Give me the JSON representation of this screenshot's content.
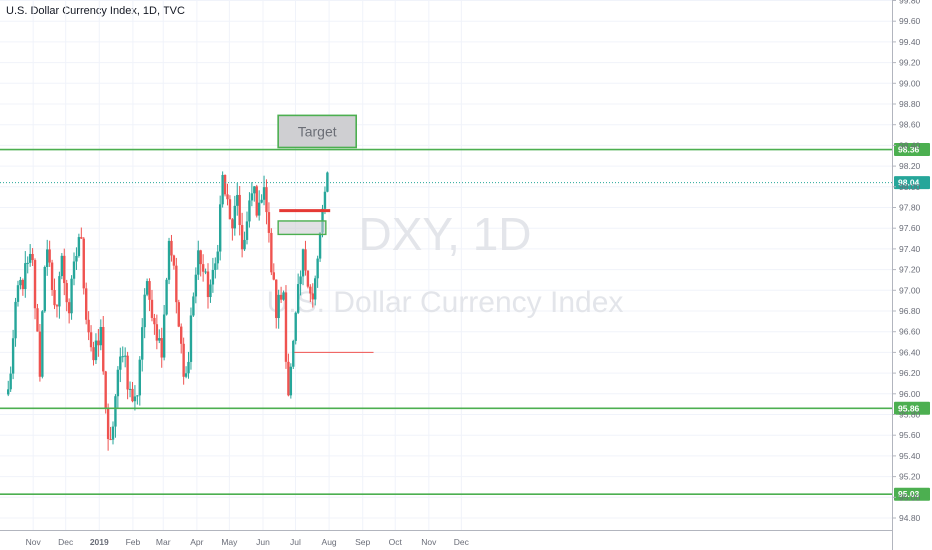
{
  "header": {
    "title": "U.S. Dollar Currency Index, 1D, TVC"
  },
  "watermark": {
    "symbol": "DXY, 1D",
    "name": "U.S. Dollar Currency Index"
  },
  "colors": {
    "up": "#26a69a",
    "down": "#ef5350",
    "level": "#4caf50",
    "resistance": "#e53935",
    "last_price": "#26a69a",
    "grid": "#f0f3fa"
  },
  "chart_data": {
    "type": "candlestick",
    "x_ticks": [
      "Nov",
      "Dec",
      "2019",
      "Feb",
      "Mar",
      "Apr",
      "May",
      "Jun",
      "Jul",
      "Aug",
      "Sep",
      "Oct",
      "Nov",
      "Dec"
    ],
    "y_ticks": [
      "94.80",
      "95.00",
      "95.20",
      "95.40",
      "95.60",
      "95.80",
      "96.00",
      "96.20",
      "96.40",
      "96.60",
      "96.80",
      "97.00",
      "97.20",
      "97.40",
      "97.60",
      "97.80",
      "98.00",
      "98.20",
      "98.40",
      "98.60",
      "98.80",
      "99.00",
      "99.20",
      "99.40",
      "99.60",
      "99.80"
    ],
    "ylim": [
      94.72,
      99.85
    ],
    "horizontal_levels": [
      {
        "value": 98.36,
        "label": "98.36"
      },
      {
        "value": 95.86,
        "label": "95.86"
      },
      {
        "value": 95.03,
        "label": "95.03"
      }
    ],
    "last_price": {
      "value": 98.04,
      "label": "98.04"
    },
    "target_zone": {
      "label": "Target",
      "low": 98.38,
      "high": 98.69,
      "from": "2019-06-15",
      "to": "2019-08-26"
    },
    "support_zone": {
      "low": 97.54,
      "high": 97.67,
      "from": "2019-06-15",
      "to": "2019-07-29"
    },
    "resistance_line": {
      "value": 97.77,
      "from": "2019-06-16",
      "to": "2019-08-02"
    },
    "thin_line": {
      "value": 96.4,
      "from": "2019-06-30",
      "to": "2019-09-11"
    },
    "anchors": [
      [
        "2018-10-09",
        96.0
      ],
      [
        "2018-10-18",
        97.0
      ],
      [
        "2018-10-31",
        97.3
      ],
      [
        "2018-11-07",
        96.2
      ],
      [
        "2018-11-13",
        97.6
      ],
      [
        "2018-11-20",
        96.7
      ],
      [
        "2018-11-27",
        97.3
      ],
      [
        "2018-12-04",
        96.8
      ],
      [
        "2018-12-14",
        97.6
      ],
      [
        "2018-12-20",
        96.8
      ],
      [
        "2018-12-27",
        96.3
      ],
      [
        "2019-01-03",
        96.6
      ],
      [
        "2019-01-10",
        95.3
      ],
      [
        "2019-01-15",
        95.9
      ],
      [
        "2019-01-23",
        96.5
      ],
      [
        "2019-01-29",
        96.0
      ],
      [
        "2019-02-04",
        95.9
      ],
      [
        "2019-02-12",
        97.0
      ],
      [
        "2019-02-18",
        96.9
      ],
      [
        "2019-02-27",
        96.4
      ],
      [
        "2019-03-07",
        97.6
      ],
      [
        "2019-03-13",
        96.9
      ],
      [
        "2019-03-21",
        96.0
      ],
      [
        "2019-03-27",
        96.8
      ],
      [
        "2019-04-03",
        97.4
      ],
      [
        "2019-04-10",
        97.0
      ],
      [
        "2019-04-17",
        97.1
      ],
      [
        "2019-04-25",
        98.1
      ],
      [
        "2019-05-02",
        97.6
      ],
      [
        "2019-05-08",
        97.8
      ],
      [
        "2019-05-14",
        97.4
      ],
      [
        "2019-05-23",
        98.0
      ],
      [
        "2019-05-29",
        97.7
      ],
      [
        "2019-06-01",
        98.2
      ],
      [
        "2019-06-07",
        97.4
      ],
      [
        "2019-06-13",
        96.8
      ],
      [
        "2019-06-20",
        97.0
      ],
      [
        "2019-06-24",
        96.0
      ],
      [
        "2019-06-28",
        96.3
      ],
      [
        "2019-07-02",
        96.8
      ],
      [
        "2019-07-08",
        97.3
      ],
      [
        "2019-07-12",
        97.2
      ],
      [
        "2019-07-17",
        96.9
      ],
      [
        "2019-07-22",
        97.3
      ],
      [
        "2019-07-26",
        97.8
      ],
      [
        "2019-07-31",
        98.05
      ]
    ],
    "grid": true,
    "legend": "none"
  }
}
